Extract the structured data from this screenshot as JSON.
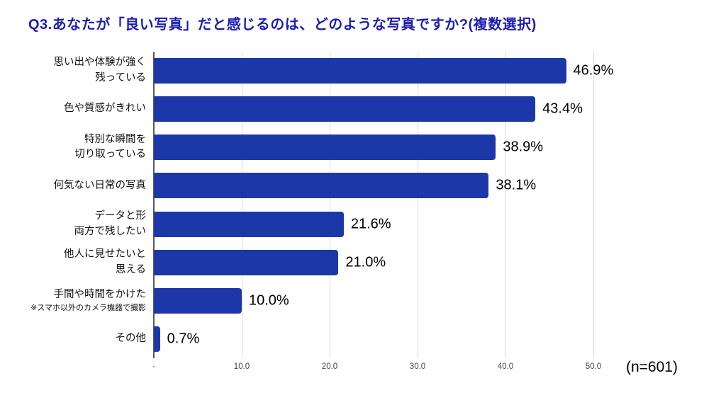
{
  "header": {
    "title": "Q3.あなたが「良い写真」だと感じるのは、どのような写真ですか?(複数選択)"
  },
  "colors": {
    "bar": "#1c38a8",
    "title": "#1d1db2",
    "gridline": "#d9d9d9",
    "axis": "#595959"
  },
  "chart_data": {
    "type": "bar",
    "orientation": "horizontal",
    "title": "Q3.あなたが「良い写真」だと感じるのは、どのような写真ですか?(複数選択)",
    "categories": [
      "思い出や体験が強く\n残っている",
      "色や質感がきれい",
      "特別な瞬間を\n切り取っている",
      "何気ない日常の写真",
      "データと形\n両方で残したい",
      "他人に見せたいと\n思える",
      "手間や時間をかけた",
      "その他"
    ],
    "category_notes": {
      "6": "※スマホ以外のカメラ機器で撮影"
    },
    "values": [
      46.9,
      43.4,
      38.9,
      38.1,
      21.6,
      21.0,
      10.0,
      0.7
    ],
    "data_labels": [
      "46.9%",
      "43.4%",
      "38.9%",
      "38.1%",
      "21.6%",
      "21.0%",
      "10.0%",
      "0.7%"
    ],
    "xlim": [
      0,
      50
    ],
    "x_ticks": [
      {
        "value": 0,
        "label": "-"
      },
      {
        "value": 10,
        "label": "10.0"
      },
      {
        "value": 20,
        "label": "20.0"
      },
      {
        "value": 30,
        "label": "30.0"
      },
      {
        "value": 40,
        "label": "40.0"
      },
      {
        "value": 50,
        "label": "50.0"
      }
    ],
    "gridlines": true,
    "legend": false,
    "sample_size_label": "(n=601)"
  }
}
